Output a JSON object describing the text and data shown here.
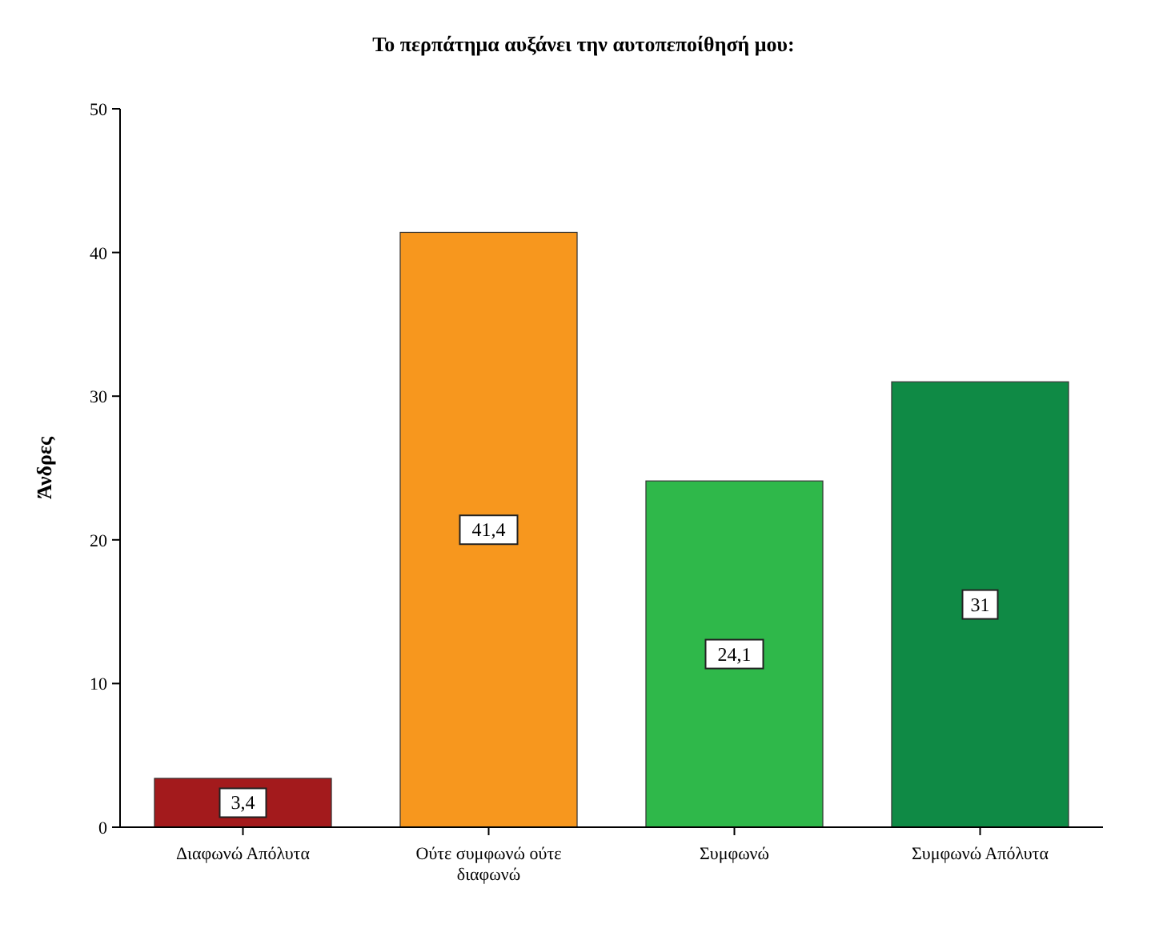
{
  "chart_data": {
    "type": "bar",
    "title": "Το περπάτημα αυξάνει την αυτοπεποίθησή μου:",
    "ylabel": "Άνδρες",
    "categories": [
      "Διαφωνώ Απόλυτα",
      "Ούτε συμφωνώ ούτε διαφωνώ",
      "Συμφωνώ",
      "Συμφωνώ Απόλυτα"
    ],
    "values": [
      3.4,
      41.4,
      24.1,
      31.0
    ],
    "colors": [
      "#a31a1c",
      "#f7971e",
      "#2fb84a",
      "#0f8a45"
    ],
    "value_labels": [
      "3,4",
      "41,4",
      "24,1",
      "31"
    ],
    "ylim": [
      0,
      50
    ],
    "yticks": [
      0,
      10,
      20,
      30,
      40,
      50
    ],
    "grid": false
  }
}
